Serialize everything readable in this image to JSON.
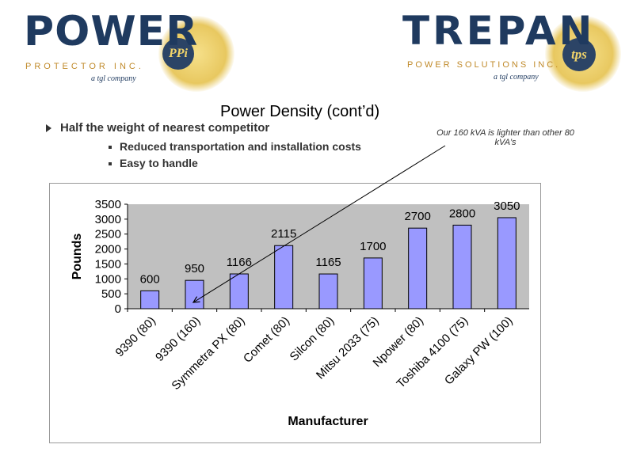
{
  "logos": {
    "left": {
      "name": "POWER",
      "sub": "PROTECTOR INC.",
      "tag": "a tgl company",
      "badge": "PPi"
    },
    "right": {
      "name": "TREPAN",
      "sub": "POWER SOLUTIONS INC.",
      "tag": "a tgl company",
      "badge": "tps"
    }
  },
  "slide": {
    "title": "Power Density (cont’d)",
    "bullet": "Half the weight of nearest competitor",
    "sub_bullets": [
      "Reduced transportation and installation costs",
      "Easy to handle"
    ],
    "note": "Our 160 kVA is lighter than other 80 kVA’s"
  },
  "colors": {
    "bar": "#9999ff",
    "plot_bg": "#c0c0c0",
    "logo_navy": "#1f3a5f",
    "logo_gold": "#c08a2a"
  },
  "chart_data": {
    "type": "bar",
    "categories": [
      "9390 (80)",
      "9390 (160)",
      "Symmetra PX (80)",
      "Comet (80)",
      "Silcon (80)",
      "Mitsu 2033 (75)",
      "Npower (80)",
      "Toshiba 4100 (75)",
      "Galaxy PW (100)"
    ],
    "values": [
      600,
      950,
      1166,
      2115,
      1165,
      1700,
      2700,
      2800,
      3050
    ],
    "xlabel": "Manufacturer",
    "ylabel": "Pounds",
    "ylim": [
      0,
      3500
    ],
    "yticks": [
      0,
      500,
      1000,
      1500,
      2000,
      2500,
      3000,
      3500
    ],
    "grid": false,
    "data_labels": true
  }
}
